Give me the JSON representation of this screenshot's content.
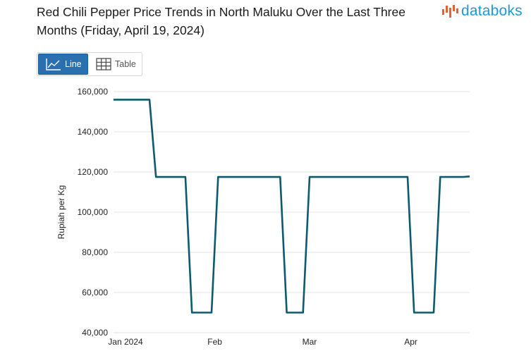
{
  "header": {
    "title": "Red Chili Pepper Price Trends in North Maluku Over the Last Three Months (Friday, April 19, 2024)",
    "brand": "databoks",
    "brand_color": "#1a9bd7",
    "brand_mark_color": "#e8622c"
  },
  "view_toggle": {
    "line_label": "Line",
    "table_label": "Table",
    "active": "Line",
    "active_color": "#2a6fb0"
  },
  "chart_data": {
    "type": "line",
    "title": "Red Chili Pepper Price Trends in North Maluku Over the Last Three Months (Friday, April 19, 2024)",
    "xlabel": "",
    "ylabel": "Rupiah per Kg",
    "ylim": [
      40000,
      160000
    ],
    "yticks": [
      40000,
      60000,
      80000,
      100000,
      120000,
      140000,
      160000
    ],
    "ytick_labels": [
      "40,000",
      "60,000",
      "80,000",
      "100,000",
      "120,000",
      "140,000",
      "160,000"
    ],
    "x_axis": {
      "start": "2024-01-01",
      "end": "2024-04-19",
      "tick_labels": [
        "Jan 2024",
        "Feb",
        "Mar",
        "Apr"
      ],
      "tick_dates": [
        "2024-01-01",
        "2024-02-01",
        "2024-03-01",
        "2024-04-01"
      ]
    },
    "grid": true,
    "line_color": "#0d5a6e",
    "series": [
      {
        "name": "Red Chili Pepper",
        "points": [
          {
            "date": "2024-01-01",
            "value": 156000
          },
          {
            "date": "2024-01-12",
            "value": 156000
          },
          {
            "date": "2024-01-14",
            "value": 117500
          },
          {
            "date": "2024-01-23",
            "value": 117500
          },
          {
            "date": "2024-01-25",
            "value": 50000
          },
          {
            "date": "2024-01-31",
            "value": 50000
          },
          {
            "date": "2024-02-02",
            "value": 117500
          },
          {
            "date": "2024-02-21",
            "value": 117500
          },
          {
            "date": "2024-02-23",
            "value": 50000
          },
          {
            "date": "2024-02-28",
            "value": 50000
          },
          {
            "date": "2024-03-01",
            "value": 117500
          },
          {
            "date": "2024-03-31",
            "value": 117500
          },
          {
            "date": "2024-04-02",
            "value": 50000
          },
          {
            "date": "2024-04-08",
            "value": 50000
          },
          {
            "date": "2024-04-10",
            "value": 117500
          },
          {
            "date": "2024-04-17",
            "value": 117500
          },
          {
            "date": "2024-04-19",
            "value": 117800
          }
        ]
      }
    ]
  }
}
